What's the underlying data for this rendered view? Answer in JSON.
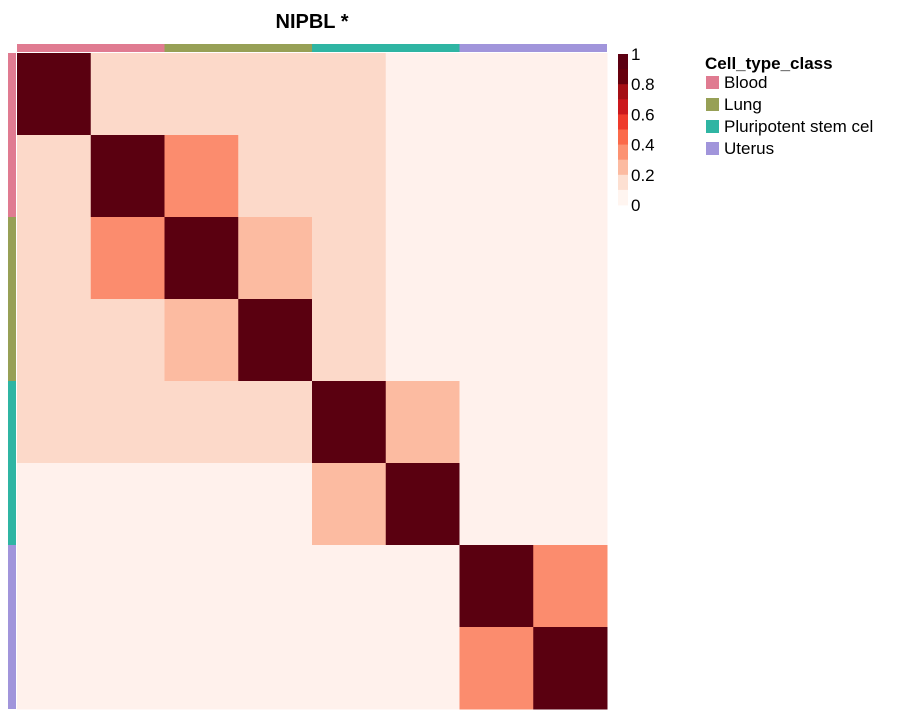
{
  "chart_data": {
    "type": "heatmap",
    "title": "NIPBL *",
    "categories": [
      "Blood",
      "Blood",
      "Lung",
      "Lung",
      "Pluripotent stem cel",
      "Pluripotent stem cel",
      "Uterus",
      "Uterus"
    ],
    "groups": [
      {
        "name": "Blood",
        "color": "#E07B91",
        "span": [
          0,
          2
        ]
      },
      {
        "name": "Lung",
        "color": "#97A056",
        "span": [
          2,
          4
        ]
      },
      {
        "name": "Pluripotent stem cel",
        "color": "#2FB5A3",
        "span": [
          4,
          6
        ]
      },
      {
        "name": "Uterus",
        "color": "#A195DB",
        "span": [
          6,
          8
        ]
      }
    ],
    "matrix": [
      [
        1.0,
        0.15,
        0.15,
        0.15,
        0.15,
        0.02,
        0.02,
        0.02
      ],
      [
        0.15,
        1.0,
        0.45,
        0.15,
        0.15,
        0.02,
        0.02,
        0.02
      ],
      [
        0.15,
        0.45,
        1.0,
        0.3,
        0.15,
        0.02,
        0.02,
        0.02
      ],
      [
        0.15,
        0.15,
        0.3,
        1.0,
        0.15,
        0.02,
        0.02,
        0.02
      ],
      [
        0.15,
        0.15,
        0.15,
        0.15,
        1.0,
        0.3,
        0.02,
        0.02
      ],
      [
        0.02,
        0.02,
        0.02,
        0.02,
        0.3,
        1.0,
        0.02,
        0.02
      ],
      [
        0.02,
        0.02,
        0.02,
        0.02,
        0.02,
        0.02,
        1.0,
        0.45
      ],
      [
        0.02,
        0.02,
        0.02,
        0.02,
        0.02,
        0.02,
        0.45,
        1.0
      ]
    ],
    "color_scale": {
      "range": [
        0,
        1
      ],
      "ticks": [
        "1",
        "0.8",
        "0.6",
        "0.4",
        "0.2",
        "0"
      ],
      "bins": [
        "#FFF5F0",
        "#FDE0D2",
        "#FCBBA1",
        "#FC9272",
        "#FB6A4A",
        "#EF3B2C",
        "#CB181D",
        "#A50F15",
        "#67000D",
        "#5C0012"
      ]
    },
    "legend": {
      "title": "Cell_type_class",
      "position": "right"
    }
  }
}
